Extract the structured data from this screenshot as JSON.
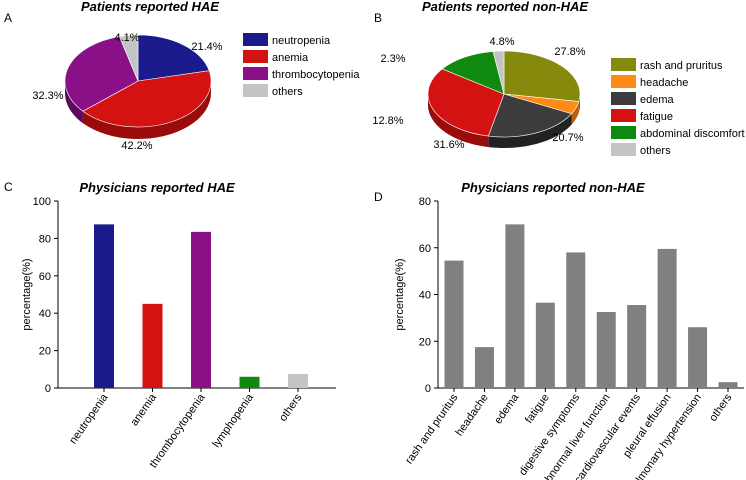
{
  "chart_data": [
    {
      "panel": "A",
      "type": "pie",
      "title": "Patients reported HAE",
      "categories": [
        "neutropenia",
        "anemia",
        "thrombocytopenia",
        "others"
      ],
      "values": [
        21.4,
        42.2,
        32.3,
        4.1
      ],
      "labels": [
        "21.4%",
        "42.2%",
        "32.3%",
        "4.1%"
      ],
      "colors": [
        "#1a1a8c",
        "#d41212",
        "#8a1088",
        "#c4c4c4"
      ],
      "side_colors": [
        "#0e0e5a",
        "#9a0c0c",
        "#5e0a5c",
        "#8e8e8e"
      ],
      "legend_position": "right"
    },
    {
      "panel": "B",
      "type": "pie",
      "title": "Patients reported non-HAE",
      "categories": [
        "rash and pruritus",
        "headache",
        "edema",
        "fatigue",
        "abdominal discomfort",
        "others"
      ],
      "values": [
        27.8,
        4.8,
        20.7,
        31.6,
        12.8,
        2.3
      ],
      "labels": [
        "27.8%",
        "4.8%",
        "20.7%",
        "31.6%",
        "12.8%",
        "2.3%"
      ],
      "colors": [
        "#858a0d",
        "#ff8a15",
        "#3c3c3c",
        "#d41212",
        "#0f8a0f",
        "#c4c4c4"
      ],
      "side_colors": [
        "#5a5e08",
        "#b86010",
        "#222222",
        "#9a0c0c",
        "#0a5e0a",
        "#8e8e8e"
      ],
      "legend_position": "right"
    },
    {
      "panel": "C",
      "type": "bar",
      "title": "Physicians reported HAE",
      "categories": [
        "neutropenia",
        "anemia",
        "thrombocytopenia",
        "lymphopenia",
        "others"
      ],
      "values": [
        87.5,
        45.0,
        83.5,
        6.0,
        7.5
      ],
      "colors": [
        "#1a1a8c",
        "#d41212",
        "#8a1088",
        "#0f8a0f",
        "#c4c4c4"
      ],
      "ylabel": "percentage(%)",
      "ylim": [
        0,
        100
      ],
      "yticks": [
        0,
        20,
        40,
        60,
        80,
        100
      ]
    },
    {
      "panel": "D",
      "type": "bar",
      "title": "Physicians reported non-HAE",
      "categories": [
        "rash and pruritus",
        "headache",
        "edema",
        "fatigue",
        "digestive symptoms",
        "abnormal liver function",
        "cardiovascular events",
        "pleural effusion",
        "pulmonary hypertension",
        "others"
      ],
      "values": [
        54.5,
        17.5,
        70.0,
        36.5,
        58.0,
        32.5,
        35.5,
        59.5,
        26.0,
        2.5
      ],
      "colors": [
        "#808080"
      ],
      "ylabel": "percentage(%)",
      "ylim": [
        0,
        80
      ],
      "yticks": [
        0,
        20,
        40,
        60,
        80
      ]
    }
  ]
}
